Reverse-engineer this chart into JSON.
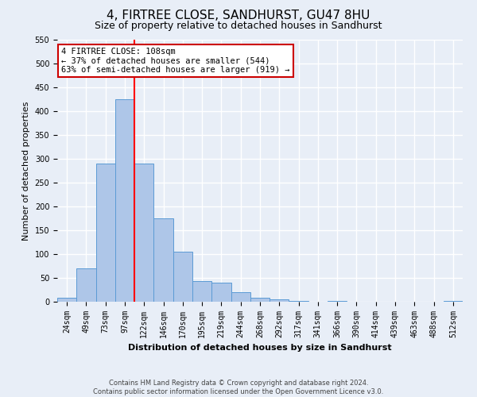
{
  "title": "4, FIRTREE CLOSE, SANDHURST, GU47 8HU",
  "subtitle": "Size of property relative to detached houses in Sandhurst",
  "bar_labels": [
    "24sqm",
    "49sqm",
    "73sqm",
    "97sqm",
    "122sqm",
    "146sqm",
    "170sqm",
    "195sqm",
    "219sqm",
    "244sqm",
    "268sqm",
    "292sqm",
    "317sqm",
    "341sqm",
    "366sqm",
    "390sqm",
    "414sqm",
    "439sqm",
    "463sqm",
    "488sqm",
    "512sqm"
  ],
  "bar_values": [
    8,
    70,
    290,
    425,
    290,
    175,
    105,
    43,
    40,
    20,
    8,
    5,
    2,
    0,
    1,
    0,
    0,
    0,
    0,
    0,
    2
  ],
  "bar_color": "#aec6e8",
  "bar_edge_color": "#5b9bd5",
  "bar_width": 1.0,
  "ylabel": "Number of detached properties",
  "xlabel": "Distribution of detached houses by size in Sandhurst",
  "ylim": [
    0,
    550
  ],
  "yticks": [
    0,
    50,
    100,
    150,
    200,
    250,
    300,
    350,
    400,
    450,
    500,
    550
  ],
  "red_line_x": 3.5,
  "property_size": "108sqm",
  "annotation_title": "4 FIRTREE CLOSE: 108sqm",
  "annotation_line1": "← 37% of detached houses are smaller (544)",
  "annotation_line2": "63% of semi-detached houses are larger (919) →",
  "annotation_box_color": "#ffffff",
  "annotation_box_edge": "#cc0000",
  "footer_line1": "Contains HM Land Registry data © Crown copyright and database right 2024.",
  "footer_line2": "Contains public sector information licensed under the Open Government Licence v3.0.",
  "bg_color": "#e8eef7",
  "plot_bg_color": "#e8eef7",
  "grid_color": "#ffffff",
  "title_fontsize": 11,
  "subtitle_fontsize": 9,
  "label_fontsize": 8,
  "tick_fontsize": 7,
  "footer_fontsize": 6,
  "annot_fontsize": 7.5
}
